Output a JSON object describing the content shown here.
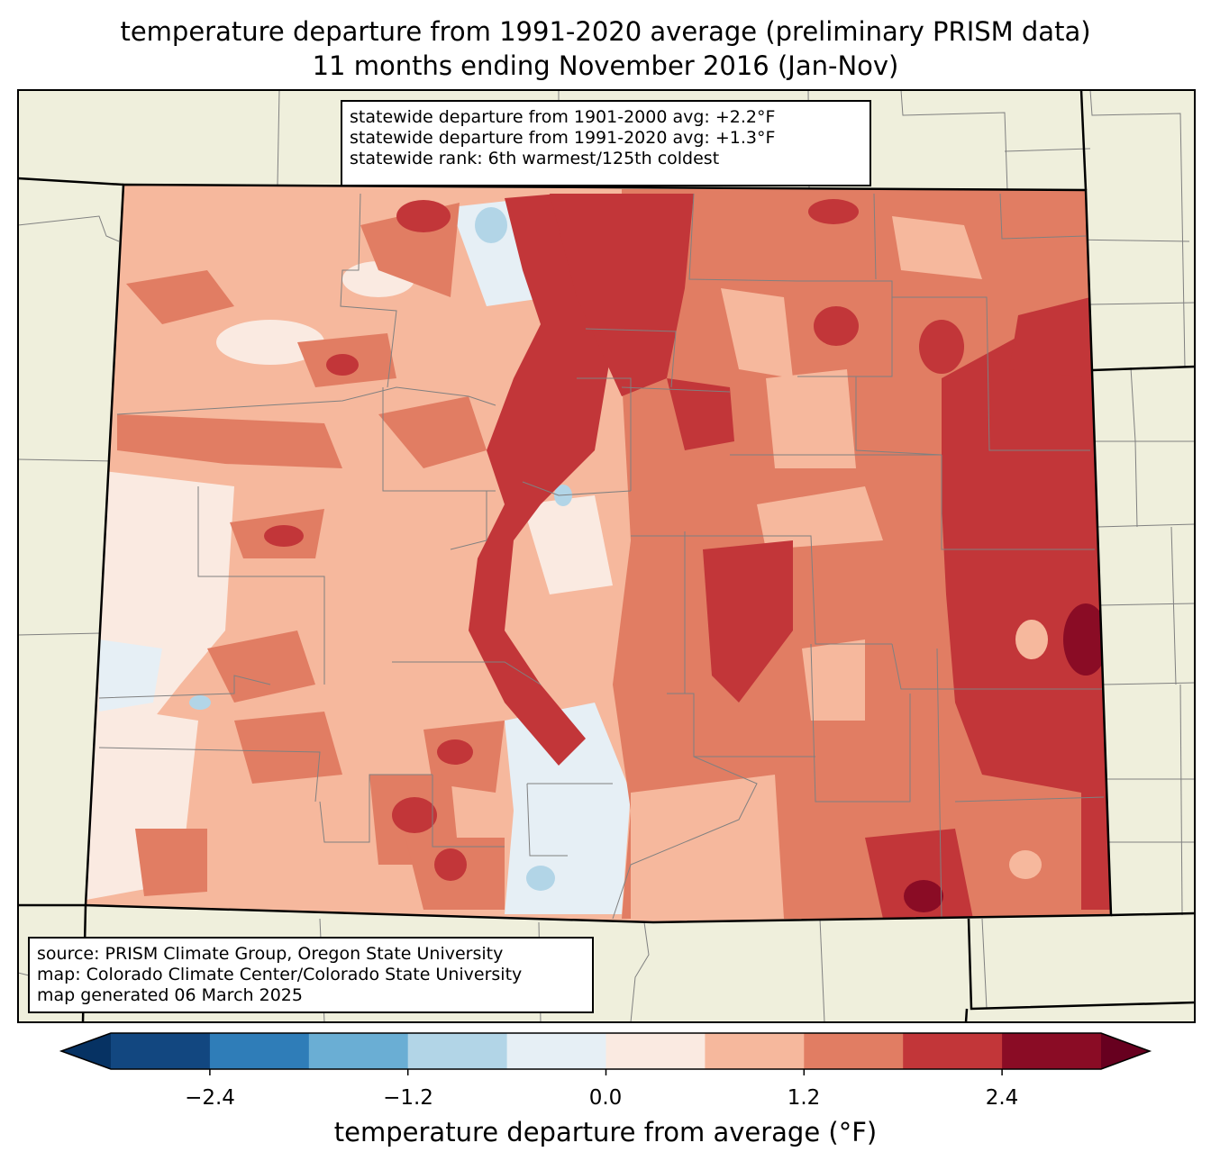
{
  "title": {
    "line1": "temperature departure from 1991-2020 average (preliminary PRISM data)",
    "line2": "11 months ending November 2016 (Jan-Nov)"
  },
  "stats": {
    "line1": "statewide departure from 1901-2000 avg: +2.2°F",
    "line2": "statewide departure from 1991-2020 avg: +1.3°F",
    "line3": "statewide rank: 6th warmest/125th coldest"
  },
  "source": {
    "line1": "source: PRISM Climate Group, Oregon State University",
    "line2": "map: Colorado Climate Center/Colorado State University",
    "line3": "map generated 06 March 2025"
  },
  "colorbar": {
    "label": "temperature departure from average (°F)",
    "ticks": [
      "−2.4",
      "−1.2",
      "0.0",
      "1.2",
      "2.4"
    ],
    "bins": [
      -3.0,
      -2.4,
      -1.8,
      -1.2,
      -0.6,
      0.0,
      0.6,
      1.2,
      1.8,
      2.4,
      3.0
    ],
    "colors": [
      "#124780",
      "#2f7db8",
      "#6aaed4",
      "#b2d5e7",
      "#e6eff5",
      "#faeae1",
      "#f6b89d",
      "#e17d63",
      "#c23639",
      "#8a0c25"
    ],
    "under_color": "#063263",
    "over_color": "#67001f"
  },
  "map_colors": {
    "land": "#efefdc",
    "boundary": "#000000",
    "county_lines": "#808080"
  }
}
